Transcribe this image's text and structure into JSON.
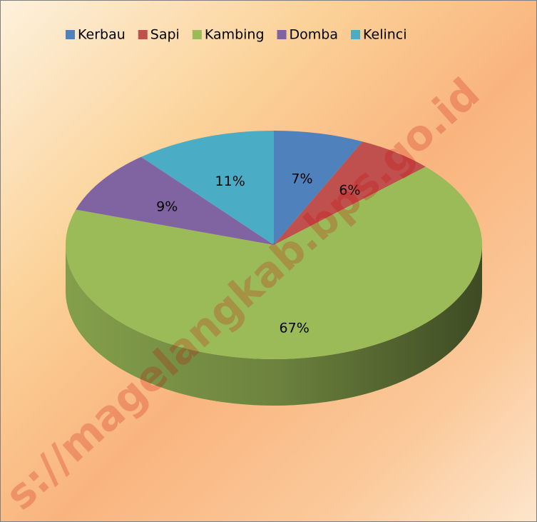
{
  "chart_data": {
    "type": "pie",
    "categories": [
      "Kerbau",
      "Sapi",
      "Kambing",
      "Domba",
      "Kelinci"
    ],
    "values": [
      7,
      6,
      67,
      9,
      11
    ],
    "value_labels": [
      "7%",
      "6%",
      "67%",
      "9%",
      "11%"
    ],
    "colors": [
      "#4f81bd",
      "#c0504d",
      "#9bbb59",
      "#8064a2",
      "#4bacc6"
    ],
    "legend": "top",
    "watermark": "s://magelangkab.bps.go.id"
  }
}
